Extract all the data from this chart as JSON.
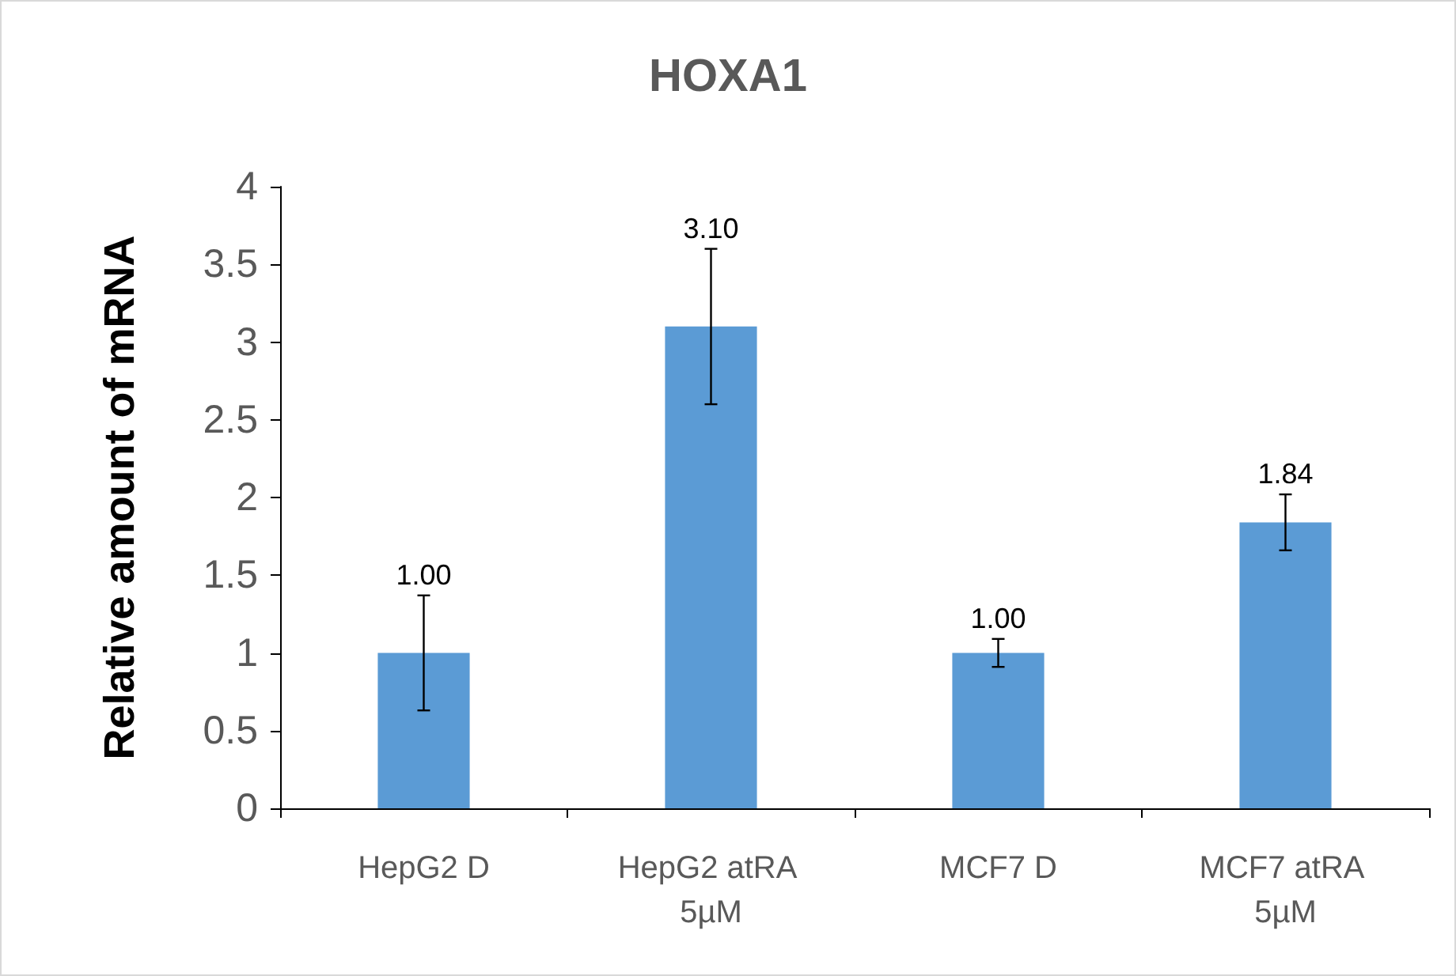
{
  "chart_data": {
    "type": "bar",
    "title": "HOXA1",
    "ylabel": "Relative amount of mRNA",
    "categories": [
      "HepG2 D",
      "HepG2 atRA 5µM",
      "MCF7 D",
      "MCF7 atRA 5µM"
    ],
    "values": [
      1.0,
      3.1,
      1.0,
      1.84
    ],
    "color": "#5b9bd5",
    "errors": [
      0.37,
      0.5,
      0.09,
      0.18
    ],
    "value_labels": [
      "1.00",
      "3.10",
      "1.00",
      "1.84"
    ],
    "ylim": [
      0,
      4
    ],
    "yticks": [
      0,
      0.5,
      1,
      1.5,
      2,
      2.5,
      3,
      3.5,
      4
    ]
  }
}
